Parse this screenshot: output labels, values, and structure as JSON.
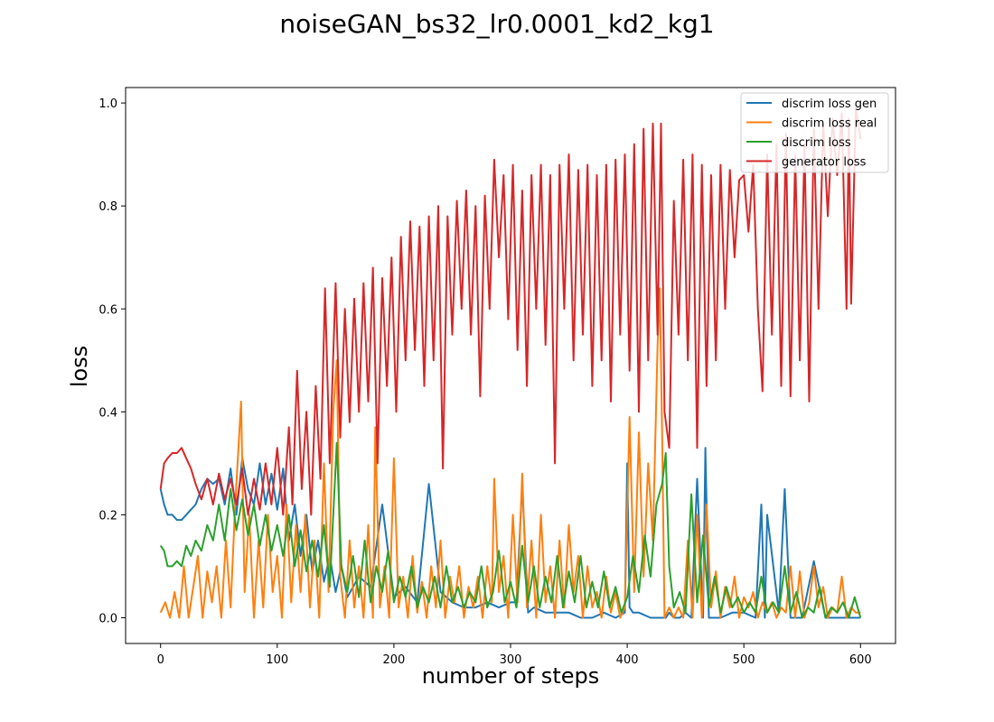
{
  "chart_data": {
    "type": "line",
    "title": "noiseGAN_bs32_lr0.0001_kd2_kg1",
    "xlabel": "number of steps",
    "ylabel": "loss",
    "xlim": [
      -30,
      630
    ],
    "ylim": [
      -0.05,
      1.03
    ],
    "xticks": [
      0,
      100,
      200,
      300,
      400,
      500,
      600
    ],
    "xtick_labels": [
      "0",
      "100",
      "200",
      "300",
      "400",
      "500",
      "600"
    ],
    "yticks": [
      0.0,
      0.2,
      0.4,
      0.6,
      0.8,
      1.0
    ],
    "ytick_labels": [
      "0.0",
      "0.2",
      "0.4",
      "0.6",
      "0.8",
      "1.0"
    ],
    "grid": false,
    "legend_position": "top-right",
    "series": [
      {
        "name": "discrim loss gen",
        "color": "#1f77b4",
        "x": [
          0,
          3,
          6,
          10,
          14,
          18,
          22,
          26,
          30,
          35,
          40,
          45,
          50,
          55,
          60,
          65,
          70,
          75,
          80,
          85,
          90,
          95,
          100,
          105,
          110,
          115,
          120,
          125,
          130,
          135,
          140,
          145,
          150,
          155,
          160,
          170,
          180,
          190,
          200,
          210,
          220,
          230,
          240,
          250,
          260,
          270,
          280,
          290,
          300,
          305,
          310,
          315,
          320,
          330,
          340,
          350,
          360,
          370,
          380,
          390,
          398,
          400,
          402,
          405,
          410,
          420,
          430,
          433,
          436,
          440,
          445,
          450,
          455,
          460,
          465,
          467,
          470,
          480,
          490,
          500,
          510,
          515,
          518,
          520,
          530,
          535,
          540,
          550,
          560,
          570,
          580,
          590,
          600
        ],
        "y": [
          0.25,
          0.22,
          0.2,
          0.2,
          0.19,
          0.19,
          0.2,
          0.21,
          0.22,
          0.25,
          0.27,
          0.26,
          0.27,
          0.22,
          0.29,
          0.2,
          0.31,
          0.25,
          0.22,
          0.3,
          0.22,
          0.28,
          0.21,
          0.29,
          0.15,
          0.22,
          0.12,
          0.2,
          0.09,
          0.15,
          0.07,
          0.12,
          0.05,
          0.1,
          0.04,
          0.08,
          0.06,
          0.22,
          0.04,
          0.06,
          0.03,
          0.26,
          0.05,
          0.03,
          0.02,
          0.02,
          0.03,
          0.02,
          0.03,
          0.03,
          0.26,
          0.01,
          0.02,
          0.01,
          0.01,
          0.01,
          0.0,
          0.0,
          0.01,
          0.0,
          0.01,
          0.3,
          0.02,
          0.01,
          0.01,
          0.0,
          0.0,
          0.0,
          0.01,
          0.0,
          0.0,
          0.01,
          0.0,
          0.27,
          0.0,
          0.33,
          0.0,
          0.0,
          0.01,
          0.01,
          0.0,
          0.22,
          0.0,
          0.2,
          0.01,
          0.25,
          0.0,
          0.0,
          0.11,
          0.0,
          0.0,
          0.0,
          0.0
        ]
      },
      {
        "name": "discrim loss real",
        "color": "#ff7f0e",
        "x": [
          0,
          4,
          8,
          12,
          16,
          20,
          24,
          28,
          32,
          36,
          40,
          44,
          48,
          52,
          56,
          60,
          64,
          69,
          72,
          76,
          80,
          84,
          88,
          92,
          96,
          100,
          104,
          108,
          112,
          116,
          120,
          124,
          128,
          132,
          136,
          140,
          144,
          148,
          151,
          154,
          158,
          162,
          166,
          170,
          174,
          178,
          182,
          184,
          188,
          192,
          196,
          200,
          204,
          208,
          212,
          216,
          220,
          224,
          228,
          232,
          236,
          240,
          244,
          248,
          252,
          256,
          260,
          264,
          268,
          272,
          276,
          280,
          284,
          286,
          290,
          294,
          298,
          302,
          306,
          310,
          314,
          318,
          322,
          326,
          330,
          334,
          338,
          342,
          346,
          350,
          354,
          358,
          362,
          366,
          370,
          374,
          378,
          382,
          386,
          390,
          394,
          398,
          402,
          406,
          410,
          414,
          418,
          422,
          426,
          428,
          430,
          432,
          436,
          440,
          444,
          448,
          452,
          456,
          460,
          464,
          468,
          472,
          476,
          480,
          484,
          488,
          492,
          496,
          500,
          504,
          508,
          512,
          516,
          520,
          524,
          528,
          532,
          536,
          540,
          544,
          548,
          552,
          556,
          560,
          564,
          568,
          572,
          576,
          580,
          584,
          588,
          592,
          596,
          600
        ],
        "y": [
          0.01,
          0.03,
          0.0,
          0.05,
          0.0,
          0.1,
          0.0,
          0.06,
          0.12,
          0.0,
          0.09,
          0.03,
          0.1,
          0.0,
          0.15,
          0.02,
          0.22,
          0.42,
          0.05,
          0.2,
          0.0,
          0.15,
          0.02,
          0.2,
          0.05,
          0.12,
          0.0,
          0.22,
          0.03,
          0.18,
          0.05,
          0.2,
          0.02,
          0.15,
          0.0,
          0.3,
          0.05,
          0.4,
          0.5,
          0.08,
          0.0,
          0.15,
          0.02,
          0.1,
          0.0,
          0.18,
          0.0,
          0.37,
          0.02,
          0.1,
          0.0,
          0.31,
          0.02,
          0.08,
          0.0,
          0.12,
          0.01,
          0.07,
          0.0,
          0.1,
          0.02,
          0.15,
          0.0,
          0.08,
          0.03,
          0.1,
          0.0,
          0.06,
          0.02,
          0.08,
          0.0,
          0.1,
          0.03,
          0.27,
          0.05,
          0.12,
          0.0,
          0.2,
          0.03,
          0.28,
          0.02,
          0.15,
          0.0,
          0.2,
          0.03,
          0.1,
          0.0,
          0.15,
          0.02,
          0.18,
          0.05,
          0.12,
          0.0,
          0.1,
          0.02,
          0.05,
          0.0,
          0.08,
          0.01,
          0.05,
          0.0,
          0.02,
          0.39,
          0.05,
          0.36,
          0.08,
          0.3,
          0.15,
          0.53,
          0.64,
          0.35,
          0.0,
          0.02,
          0.0,
          0.02,
          0.0,
          0.15,
          0.0,
          0.2,
          0.0,
          0.22,
          0.02,
          0.09,
          0.0,
          0.06,
          0.02,
          0.08,
          0.0,
          0.04,
          0.02,
          0.05,
          0.0,
          0.03,
          0.01,
          0.03,
          0.0,
          0.02,
          0.01,
          0.1,
          0.0,
          0.09,
          0.0,
          0.03,
          0.1,
          0.02,
          0.06,
          0.0,
          0.02,
          0.01,
          0.08,
          0.0,
          0.02,
          0.01,
          0.01
        ]
      },
      {
        "name": "discrim loss",
        "color": "#2ca02c",
        "x": [
          0,
          3,
          6,
          10,
          14,
          18,
          22,
          26,
          30,
          35,
          40,
          45,
          50,
          55,
          60,
          65,
          70,
          75,
          80,
          85,
          90,
          95,
          100,
          105,
          110,
          115,
          120,
          125,
          130,
          135,
          140,
          145,
          151,
          155,
          160,
          165,
          170,
          175,
          180,
          185,
          190,
          195,
          200,
          205,
          210,
          215,
          220,
          225,
          230,
          235,
          240,
          245,
          250,
          255,
          260,
          265,
          270,
          275,
          280,
          285,
          290,
          295,
          300,
          305,
          310,
          315,
          320,
          325,
          330,
          335,
          340,
          345,
          350,
          355,
          360,
          365,
          370,
          375,
          380,
          385,
          390,
          395,
          400,
          405,
          410,
          415,
          420,
          425,
          430,
          433,
          436,
          440,
          445,
          450,
          455,
          460,
          465,
          470,
          475,
          480,
          485,
          490,
          495,
          500,
          505,
          510,
          515,
          520,
          525,
          530,
          535,
          540,
          545,
          550,
          555,
          560,
          565,
          570,
          575,
          580,
          585,
          590,
          595,
          600
        ],
        "y": [
          0.14,
          0.13,
          0.1,
          0.1,
          0.11,
          0.1,
          0.14,
          0.12,
          0.15,
          0.13,
          0.18,
          0.15,
          0.22,
          0.15,
          0.25,
          0.17,
          0.23,
          0.16,
          0.22,
          0.14,
          0.2,
          0.13,
          0.18,
          0.12,
          0.2,
          0.1,
          0.17,
          0.09,
          0.15,
          0.08,
          0.18,
          0.06,
          0.34,
          0.1,
          0.05,
          0.12,
          0.04,
          0.15,
          0.03,
          0.1,
          0.05,
          0.13,
          0.03,
          0.08,
          0.04,
          0.1,
          0.02,
          0.06,
          0.03,
          0.08,
          0.02,
          0.1,
          0.03,
          0.06,
          0.02,
          0.05,
          0.03,
          0.1,
          0.02,
          0.05,
          0.13,
          0.03,
          0.07,
          0.02,
          0.14,
          0.03,
          0.1,
          0.02,
          0.08,
          0.03,
          0.12,
          0.02,
          0.09,
          0.03,
          0.12,
          0.02,
          0.07,
          0.02,
          0.09,
          0.02,
          0.06,
          0.01,
          0.04,
          0.12,
          0.05,
          0.16,
          0.08,
          0.22,
          0.26,
          0.32,
          0.1,
          0.02,
          0.05,
          0.01,
          0.24,
          0.03,
          0.16,
          0.02,
          0.08,
          0.01,
          0.06,
          0.02,
          0.04,
          0.01,
          0.03,
          0.01,
          0.08,
          0.01,
          0.03,
          0.01,
          0.1,
          0.01,
          0.05,
          0.0,
          0.02,
          0.01,
          0.06,
          0.0,
          0.02,
          0.01,
          0.03,
          0.0,
          0.04,
          0.0
        ]
      },
      {
        "name": "generator loss",
        "color": "#d62728",
        "x": [
          0,
          3,
          6,
          10,
          14,
          18,
          22,
          26,
          30,
          35,
          40,
          45,
          50,
          55,
          60,
          65,
          70,
          75,
          80,
          85,
          90,
          95,
          100,
          105,
          110,
          113,
          117,
          121,
          125,
          129,
          133,
          137,
          141,
          145,
          150,
          154,
          158,
          162,
          166,
          170,
          174,
          178,
          182,
          186,
          190,
          194,
          198,
          202,
          206,
          210,
          214,
          218,
          222,
          226,
          230,
          234,
          238,
          242,
          246,
          250,
          254,
          258,
          262,
          266,
          270,
          274,
          278,
          282,
          286,
          290,
          294,
          298,
          302,
          306,
          310,
          314,
          318,
          322,
          326,
          330,
          334,
          338,
          342,
          346,
          350,
          354,
          358,
          362,
          366,
          370,
          374,
          378,
          382,
          386,
          390,
          394,
          398,
          402,
          406,
          410,
          414,
          418,
          422,
          426,
          429,
          432,
          436,
          440,
          444,
          448,
          452,
          456,
          460,
          464,
          468,
          472,
          476,
          480,
          484,
          488,
          492,
          496,
          500,
          504,
          508,
          512,
          516,
          520,
          524,
          528,
          532,
          536,
          540,
          544,
          548,
          552,
          556,
          560,
          564,
          568,
          572,
          576,
          580,
          584,
          588,
          590,
          592,
          596,
          600
        ],
        "y": [
          0.25,
          0.3,
          0.31,
          0.32,
          0.32,
          0.33,
          0.31,
          0.29,
          0.26,
          0.23,
          0.27,
          0.22,
          0.28,
          0.23,
          0.27,
          0.22,
          0.29,
          0.2,
          0.27,
          0.21,
          0.3,
          0.22,
          0.33,
          0.2,
          0.37,
          0.22,
          0.48,
          0.25,
          0.4,
          0.2,
          0.45,
          0.27,
          0.64,
          0.3,
          0.65,
          0.35,
          0.6,
          0.38,
          0.62,
          0.4,
          0.65,
          0.42,
          0.68,
          0.3,
          0.66,
          0.45,
          0.7,
          0.4,
          0.74,
          0.5,
          0.77,
          0.52,
          0.76,
          0.45,
          0.78,
          0.5,
          0.8,
          0.29,
          0.78,
          0.55,
          0.81,
          0.6,
          0.83,
          0.55,
          0.8,
          0.43,
          0.82,
          0.6,
          0.89,
          0.7,
          0.86,
          0.58,
          0.88,
          0.52,
          0.83,
          0.45,
          0.86,
          0.6,
          0.88,
          0.53,
          0.86,
          0.3,
          0.88,
          0.6,
          0.9,
          0.5,
          0.87,
          0.55,
          0.88,
          0.45,
          0.86,
          0.5,
          0.88,
          0.42,
          0.89,
          0.55,
          0.9,
          0.48,
          0.92,
          0.4,
          0.95,
          0.5,
          0.96,
          0.55,
          0.96,
          0.4,
          0.33,
          0.81,
          0.55,
          0.89,
          0.5,
          0.9,
          0.33,
          0.88,
          0.45,
          0.86,
          0.5,
          0.88,
          0.6,
          0.87,
          0.7,
          0.85,
          0.86,
          0.75,
          0.88,
          0.6,
          0.44,
          0.9,
          0.55,
          0.92,
          0.45,
          0.94,
          0.43,
          0.9,
          0.5,
          0.92,
          0.42,
          0.95,
          0.6,
          0.96,
          0.78,
          0.97,
          0.86,
          0.98,
          0.6,
          0.97,
          0.61,
          0.99,
          0.93
        ]
      }
    ]
  }
}
